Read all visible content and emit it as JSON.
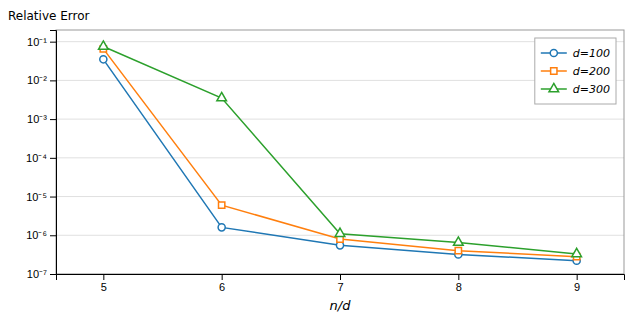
{
  "chart_data": {
    "type": "line",
    "xlabel": "n/d",
    "ylabel": "Relative Error",
    "x": [
      5,
      6,
      7,
      8,
      9
    ],
    "series": [
      {
        "name": "d=100",
        "marker": "circle",
        "values": [
          0.035,
          1.6e-06,
          5.5e-07,
          3.2e-07,
          2.2e-07
        ]
      },
      {
        "name": "d=200",
        "marker": "square",
        "values": [
          0.065,
          6e-06,
          8e-07,
          4e-07,
          2.8e-07
        ]
      },
      {
        "name": "d=300",
        "marker": "triangle",
        "values": [
          0.075,
          0.0035,
          1.1e-06,
          6.5e-07,
          3.3e-07
        ]
      }
    ],
    "xlim": [
      4.6,
      9.4
    ],
    "ylim": [
      1e-07,
      0.2
    ],
    "xticks": [
      5,
      6,
      7,
      8,
      9
    ],
    "yticks": [
      {
        "value": 1e-07,
        "label": "10⁻⁷"
      },
      {
        "value": 1e-06,
        "label": "10⁻⁶"
      },
      {
        "value": 1e-05,
        "label": "10⁻⁵"
      },
      {
        "value": 0.0001,
        "label": "10⁻⁴"
      },
      {
        "value": 0.001,
        "label": "10⁻³"
      },
      {
        "value": 0.01,
        "label": "10⁻²"
      },
      {
        "value": 0.1,
        "label": "10⁻¹"
      }
    ],
    "log": "y",
    "grid": true,
    "legend": "upper right"
  }
}
